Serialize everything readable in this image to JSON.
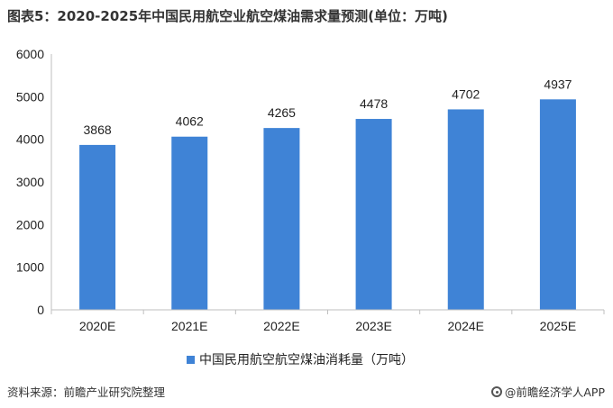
{
  "title": "图表5：2020-2025年中国民用航空业航空煤油需求量预测(单位：万吨)",
  "source": "资料来源：前瞻产业研究院整理",
  "brand": "@前瞻经济学人APP",
  "colors": {
    "bar": "#3f83d6",
    "axis": "#bfbfbf",
    "text": "#222222"
  },
  "chart_data": {
    "type": "bar",
    "categories": [
      "2020E",
      "2021E",
      "2022E",
      "2023E",
      "2024E",
      "2025E"
    ],
    "series": [
      {
        "name": "中国民用航空航空煤油消耗量（万吨）",
        "values": [
          3868,
          4062,
          4265,
          4478,
          4702,
          4937
        ]
      }
    ],
    "ylim": [
      0,
      6000
    ],
    "yticks": [
      0,
      1000,
      2000,
      3000,
      4000,
      5000,
      6000
    ],
    "data_labels": [
      "3868",
      "4062",
      "4265",
      "4478",
      "4702",
      "4937"
    ],
    "grid": false,
    "legend_position": "bottom"
  }
}
